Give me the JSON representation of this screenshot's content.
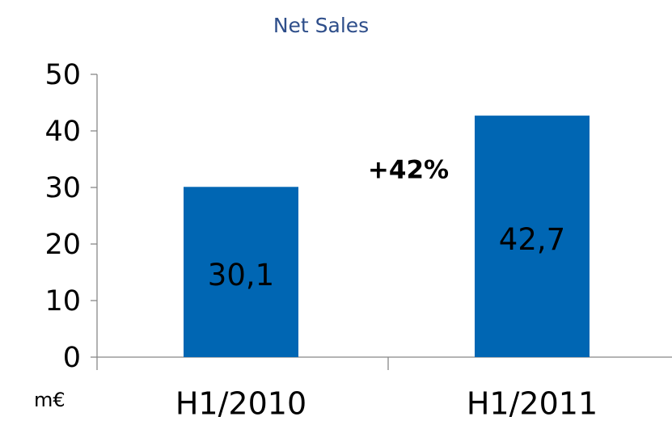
{
  "chart_data": {
    "type": "bar",
    "title": "Net Sales",
    "categories": [
      "H1/2010",
      "H1/2011"
    ],
    "values": [
      30.1,
      42.7
    ],
    "value_labels": [
      "30,1",
      "42,7"
    ],
    "color": "#0066b3",
    "ylim": [
      0,
      50
    ],
    "yticks": [
      0,
      10,
      20,
      30,
      40,
      50
    ],
    "annotation": "+42%",
    "unit_label": "m€"
  }
}
